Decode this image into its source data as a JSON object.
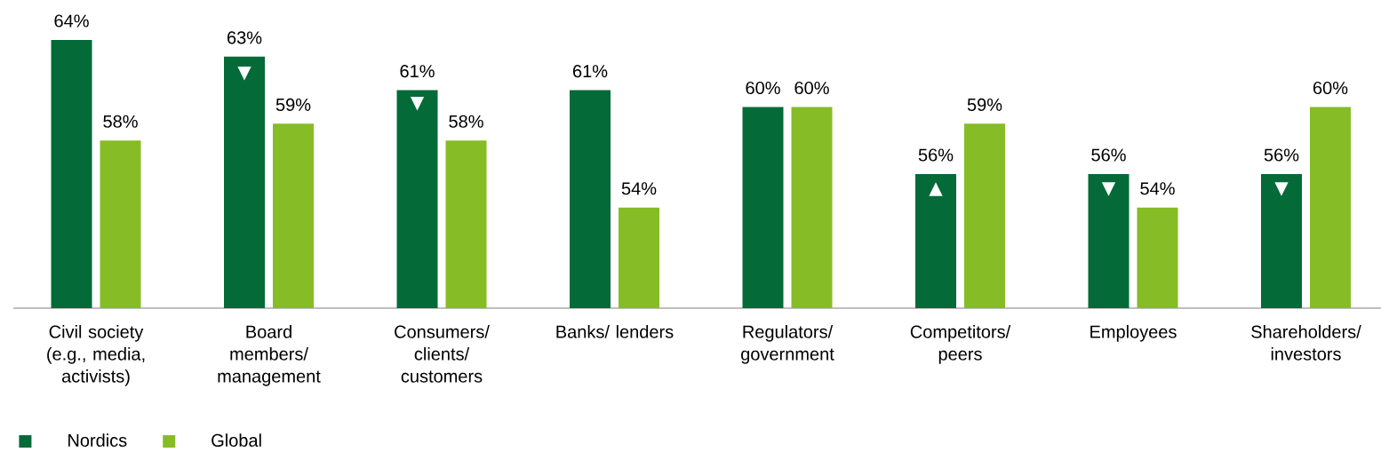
{
  "chart_data": {
    "type": "bar",
    "categories": [
      "Civil society (e.g., media, activists)",
      "Board members/ management",
      "Consumers/ clients/ customers",
      "Banks/ lenders",
      "Regulators/ government",
      "Competitors/ peers",
      "Employees",
      "Shareholders/ investors"
    ],
    "series": [
      {
        "name": "Nordics",
        "color": "#046a38",
        "values": [
          64,
          63,
          61,
          61,
          60,
          56,
          56,
          56
        ],
        "value_labels": [
          "64%",
          "63%",
          "61%",
          "61%",
          "60%",
          "56%",
          "56%",
          "56%"
        ]
      },
      {
        "name": "Global",
        "color": "#86bc25",
        "values": [
          58,
          59,
          58,
          54,
          60,
          59,
          54,
          60
        ],
        "value_labels": [
          "58%",
          "59%",
          "58%",
          "54%",
          "60%",
          "59%",
          "54%",
          "60%"
        ]
      }
    ],
    "ylim": [
      48,
      64
    ],
    "legend": "bottom left",
    "annotations": [
      {
        "text": "▼",
        "x": "Board members/ management",
        "y": 62
      },
      {
        "text": "▼",
        "x": "Consumers/ clients/ customers",
        "y": 60.2
      },
      {
        "text": "▲",
        "x": "Competitors/ peers",
        "y": 55.1
      },
      {
        "text": "▼",
        "x": "Employees",
        "y": 55.1
      },
      {
        "text": "▼",
        "x": "Shareholders/ investors",
        "y": 55.1
      }
    ]
  }
}
